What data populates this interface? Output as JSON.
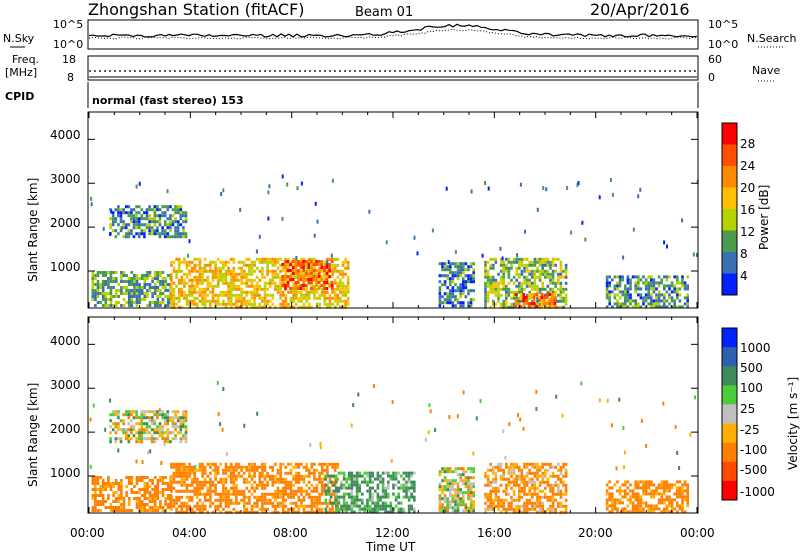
{
  "header": {
    "station": "Zhongshan Station (fitACF)",
    "beam": "Beam 01",
    "date": "20/Apr/2016"
  },
  "noise_panel": {
    "left_label": "N.Sky",
    "right_label": "N.Search",
    "left_ticks": [
      "10^5",
      "10^0"
    ],
    "right_ticks": [
      "10^5",
      "10^0"
    ]
  },
  "freq_panel": {
    "left_label_line1": "Freq.",
    "left_label_line2": "[MHz]",
    "right_label": "Nave",
    "left_ticks": [
      "18",
      "8"
    ],
    "right_ticks": [
      "60",
      "0"
    ]
  },
  "cpid": {
    "label": "CPID",
    "text": "normal (fast stereo) 153"
  },
  "x_axis": {
    "label": "Time UT",
    "ticks": [
      "00:00",
      "04:00",
      "08:00",
      "12:00",
      "16:00",
      "20:00",
      "00:00"
    ]
  },
  "power_panel": {
    "ylabel": "Slant Range [km]",
    "yticks": [
      "4000",
      "3000",
      "2000",
      "1000"
    ],
    "colorbar_label": "Power [dB]",
    "colorbar_ticks": [
      "28",
      "24",
      "20",
      "16",
      "12",
      "8",
      "4"
    ],
    "colorbar_colors": [
      "#ff0000",
      "#ff5000",
      "#ff8a00",
      "#ffc000",
      "#b4d200",
      "#4a9a50",
      "#3a6fb4",
      "#0022ff"
    ]
  },
  "velocity_panel": {
    "ylabel": "Slant Range [km]",
    "yticks": [
      "4000",
      "3000",
      "2000",
      "1000"
    ],
    "colorbar_label": "Velocity [m s⁻¹]",
    "colorbar_ticks": [
      "1000",
      "500",
      "100",
      "25",
      "-25",
      "-100",
      "-500",
      "-1000"
    ],
    "colorbar_colors": [
      "#0022ff",
      "#2e5fb0",
      "#3f8a5a",
      "#4bcc3a",
      "#c0c0c0",
      "#ffb000",
      "#ff8000",
      "#ff4800",
      "#ff0000"
    ]
  },
  "chart_data": [
    {
      "type": "heatmap",
      "title": "Power",
      "xlabel": "Time UT",
      "ylabel": "Slant Range [km]",
      "x_range_hours": [
        0,
        24
      ],
      "ylim": [
        180,
        4600
      ],
      "colorbar": {
        "label": "Power [dB]",
        "range": [
          0,
          32
        ]
      },
      "regions": [
        {
          "t0": 0.1,
          "t1": 3.2,
          "r0": 180,
          "r1": 1000,
          "value": 12
        },
        {
          "t0": 3.2,
          "t1": 10.2,
          "r0": 180,
          "r1": 1300,
          "value": 20
        },
        {
          "t0": 7.6,
          "t1": 9.6,
          "r0": 600,
          "r1": 1250,
          "value": 27
        },
        {
          "t0": 0.8,
          "t1": 3.8,
          "r0": 1800,
          "r1": 2500,
          "value": 10
        },
        {
          "t0": 13.8,
          "t1": 15.2,
          "r0": 180,
          "r1": 1200,
          "value": 9
        },
        {
          "t0": 15.6,
          "t1": 18.8,
          "r0": 180,
          "r1": 1300,
          "value": 14
        },
        {
          "t0": 16.8,
          "t1": 18.4,
          "r0": 180,
          "r1": 500,
          "value": 26
        },
        {
          "t0": 20.4,
          "t1": 23.6,
          "r0": 180,
          "r1": 900,
          "value": 11
        }
      ]
    },
    {
      "type": "heatmap",
      "title": "Velocity",
      "xlabel": "Time UT",
      "ylabel": "Slant Range [km]",
      "x_range_hours": [
        0,
        24
      ],
      "ylim": [
        180,
        4600
      ],
      "colorbar": {
        "label": "Velocity [m s⁻¹]",
        "range": [
          -1000,
          1000
        ]
      },
      "regions": [
        {
          "t0": 0.1,
          "t1": 3.2,
          "r0": 180,
          "r1": 1000,
          "value": -200
        },
        {
          "t0": 3.2,
          "t1": 9.8,
          "r0": 180,
          "r1": 1300,
          "value": -200
        },
        {
          "t0": 9.3,
          "t1": 12.8,
          "r0": 180,
          "r1": 1100,
          "value": 150
        },
        {
          "t0": 0.8,
          "t1": 3.8,
          "r0": 1800,
          "r1": 2500,
          "value": 0
        },
        {
          "t0": 13.8,
          "t1": 15.2,
          "r0": 180,
          "r1": 1200,
          "value": 0
        },
        {
          "t0": 15.6,
          "t1": 18.8,
          "r0": 180,
          "r1": 1300,
          "value": -150
        },
        {
          "t0": 20.4,
          "t1": 23.6,
          "r0": 180,
          "r1": 900,
          "value": -200
        }
      ]
    }
  ]
}
